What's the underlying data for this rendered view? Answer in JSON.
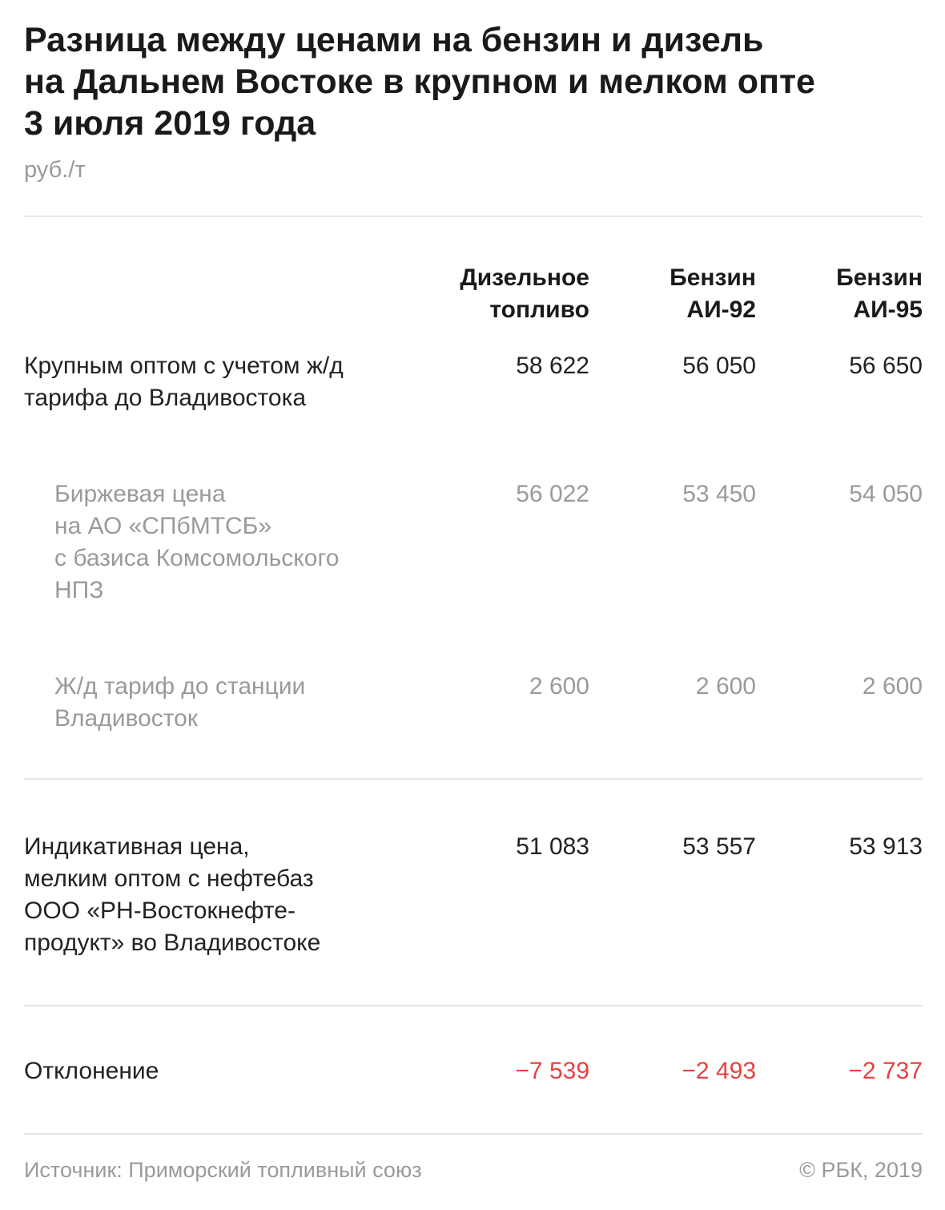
{
  "title": "Разница между ценами на бензин и дизель на Дальнем Востоке в крупном и мелком опте 3 июля 2019 года",
  "title_lines": [
    "Разница между ценами на бензин и дизель",
    "на Дальнем Востоке в крупном и мелком опте",
    "3 июля 2019 года"
  ],
  "unit": "руб./т",
  "colors": {
    "text": "#1a1a1a",
    "secondary": "#9a9a9a",
    "negative": "#e8403f"
  },
  "chart_data": {
    "type": "table",
    "columns": [
      {
        "lines": [
          "Дизельное",
          "топливо"
        ]
      },
      {
        "lines": [
          "Бензин",
          "АИ-92"
        ]
      },
      {
        "lines": [
          "Бензин",
          "АИ-95"
        ]
      }
    ],
    "rows": [
      {
        "label_lines": [
          "Крупным оптом с учетом ж/д",
          "тарифа до Владивостока"
        ],
        "values": [
          "58 622",
          "56 050",
          "56 650"
        ]
      },
      {
        "label_lines": [
          "Биржевая цена",
          "на АО «СПбМТСБ»",
          "с базиса Комсомольского",
          "НПЗ"
        ],
        "values": [
          "56 022",
          "53 450",
          "54 050"
        ]
      },
      {
        "label_lines": [
          "Ж/д тариф до станции",
          "Владивосток"
        ],
        "values": [
          "2 600",
          "2 600",
          "2 600"
        ]
      },
      {
        "label_lines": [
          "Индикативная цена,",
          "мелким оптом с нефтебаз",
          "ООО «РН-Востокнефте-",
          "продукт» во Владивостоке"
        ],
        "values": [
          "51 083",
          "53 557",
          "53 913"
        ]
      },
      {
        "label_lines": [
          "Отклонение"
        ],
        "values": [
          "−7 539",
          "−2 493",
          "−2 737"
        ]
      }
    ]
  },
  "footer": {
    "source": "Источник: Приморский топливный союз",
    "copyright": "© РБК, 2019"
  }
}
